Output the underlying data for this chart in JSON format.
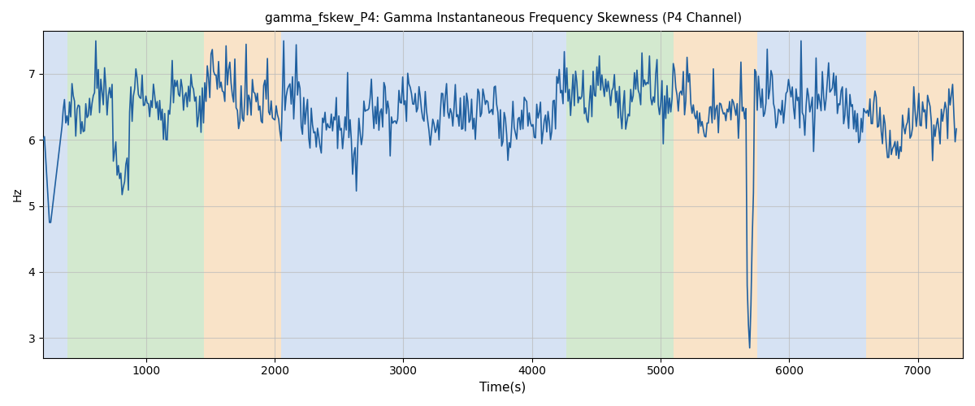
{
  "title": "gamma_fskew_P4: Gamma Instantaneous Frequency Skewness (P4 Channel)",
  "xlabel": "Time(s)",
  "ylabel": "Hz",
  "xlim": [
    200,
    7350
  ],
  "ylim": [
    2.7,
    7.65
  ],
  "yticks": [
    3,
    4,
    5,
    6,
    7
  ],
  "line_color": "#2060a0",
  "line_width": 1.2,
  "background_regions": [
    {
      "xmin": 200,
      "xmax": 390,
      "color": "#aec6e8",
      "alpha": 0.5
    },
    {
      "xmin": 390,
      "xmax": 1450,
      "color": "#a8d4a0",
      "alpha": 0.5
    },
    {
      "xmin": 1450,
      "xmax": 2050,
      "color": "#f5c992",
      "alpha": 0.5
    },
    {
      "xmin": 2050,
      "xmax": 4150,
      "color": "#aec6e8",
      "alpha": 0.5
    },
    {
      "xmin": 4150,
      "xmax": 4270,
      "color": "#aec6e8",
      "alpha": 0.5
    },
    {
      "xmin": 4270,
      "xmax": 5100,
      "color": "#a8d4a0",
      "alpha": 0.5
    },
    {
      "xmin": 5100,
      "xmax": 5750,
      "color": "#f5c992",
      "alpha": 0.5
    },
    {
      "xmin": 5750,
      "xmax": 6600,
      "color": "#aec6e8",
      "alpha": 0.5
    },
    {
      "xmin": 6600,
      "xmax": 7350,
      "color": "#f5c992",
      "alpha": 0.5
    }
  ],
  "grid_color": "#bbbbbb",
  "grid_alpha": 0.7,
  "grid_linewidth": 0.8,
  "figsize": [
    12,
    5
  ],
  "dpi": 100,
  "random_seed": 7,
  "n_points": 730,
  "signal_base": 6.5,
  "noise_scale": 0.22,
  "spike_scale": 0.35
}
